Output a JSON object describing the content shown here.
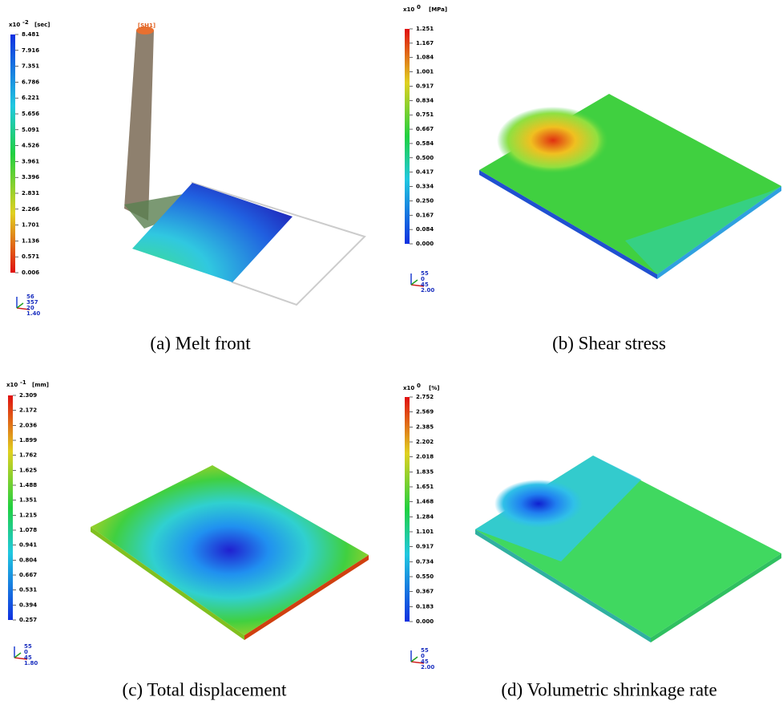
{
  "panels": [
    {
      "caption": "(a) Melt front",
      "scale_base": "x10",
      "scale_exponent": "-2",
      "unit": "[sec]",
      "marker": "[SH1]",
      "scale_labels": [
        "8.481",
        "7.916",
        "7.351",
        "6.786",
        "6.221",
        "5.656",
        "5.091",
        "4.526",
        "3.961",
        "3.396",
        "2.831",
        "2.266",
        "1.701",
        "1.136",
        "0.571",
        "0.006"
      ],
      "view_labels": [
        "56",
        "357",
        "20",
        "1.40"
      ]
    },
    {
      "caption": "(b) Shear stress",
      "scale_base": "x10",
      "scale_exponent": "0",
      "unit": "[MPa]",
      "scale_labels": [
        "1.251",
        "1.167",
        "1.084",
        "1.001",
        "0.917",
        "0.834",
        "0.751",
        "0.667",
        "0.584",
        "0.500",
        "0.417",
        "0.334",
        "0.250",
        "0.167",
        "0.084",
        "0.000"
      ],
      "view_labels": [
        "55",
        "0",
        "45",
        "2.00"
      ]
    },
    {
      "caption": "(c) Total displacement",
      "scale_base": "x10",
      "scale_exponent": "-1",
      "unit": "[mm]",
      "scale_labels": [
        "2.309",
        "2.172",
        "2.036",
        "1.899",
        "1.762",
        "1.625",
        "1.488",
        "1.351",
        "1.215",
        "1.078",
        "0.941",
        "0.804",
        "0.667",
        "0.531",
        "0.394",
        "0.257"
      ],
      "view_labels": [
        "55",
        "0",
        "45",
        "1.80"
      ]
    },
    {
      "caption": "(d) Volumetric shrinkage rate",
      "scale_base": "x10",
      "scale_exponent": "0",
      "unit": "[%]",
      "scale_labels": [
        "2.752",
        "2.569",
        "2.385",
        "2.202",
        "2.018",
        "1.835",
        "1.651",
        "1.468",
        "1.284",
        "1.101",
        "0.917",
        "0.734",
        "0.550",
        "0.367",
        "0.183",
        "0.000"
      ],
      "view_labels": [
        "55",
        "0",
        "45",
        "2.00"
      ]
    }
  ]
}
